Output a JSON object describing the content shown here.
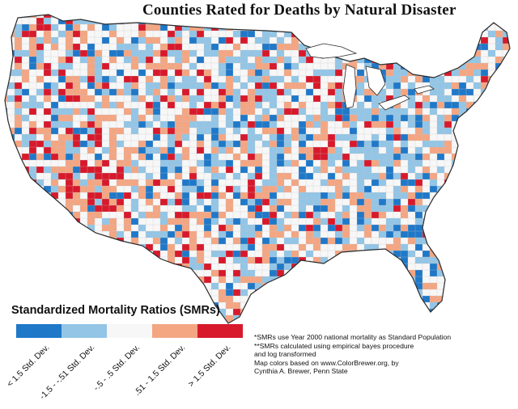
{
  "title": "Counties Rated for Deaths by Natural Disaster",
  "legend": {
    "title": "Standardized Mortality Ratios (SMRs)",
    "classes": [
      {
        "label": "< 1.5 Std. Dev.",
        "color": "#1f78c8"
      },
      {
        "label": "-1.5 - -.51 Std. Dev.",
        "color": "#92c5e6"
      },
      {
        "label": "-.5 - .5 Std. Dev.",
        "color": "#f7f7f7"
      },
      {
        "label": ".51 - 1.5 Std. Dev.",
        "color": "#f4a582"
      },
      {
        "label": "> 1.5 Std. Dev.",
        "color": "#d7192b"
      }
    ]
  },
  "notes": [
    "*SMRs use Year 2000 national mortality as Standard Population",
    "**SMRs calculated using empirical bayes procedure",
    "and log transformed",
    "Map colors based on www.ColorBrewer.org, by",
    "Cynthia A. Brewer, Penn State"
  ],
  "colors": {
    "outline": "#2a2a2a",
    "county_border": "#c8c8c8"
  }
}
